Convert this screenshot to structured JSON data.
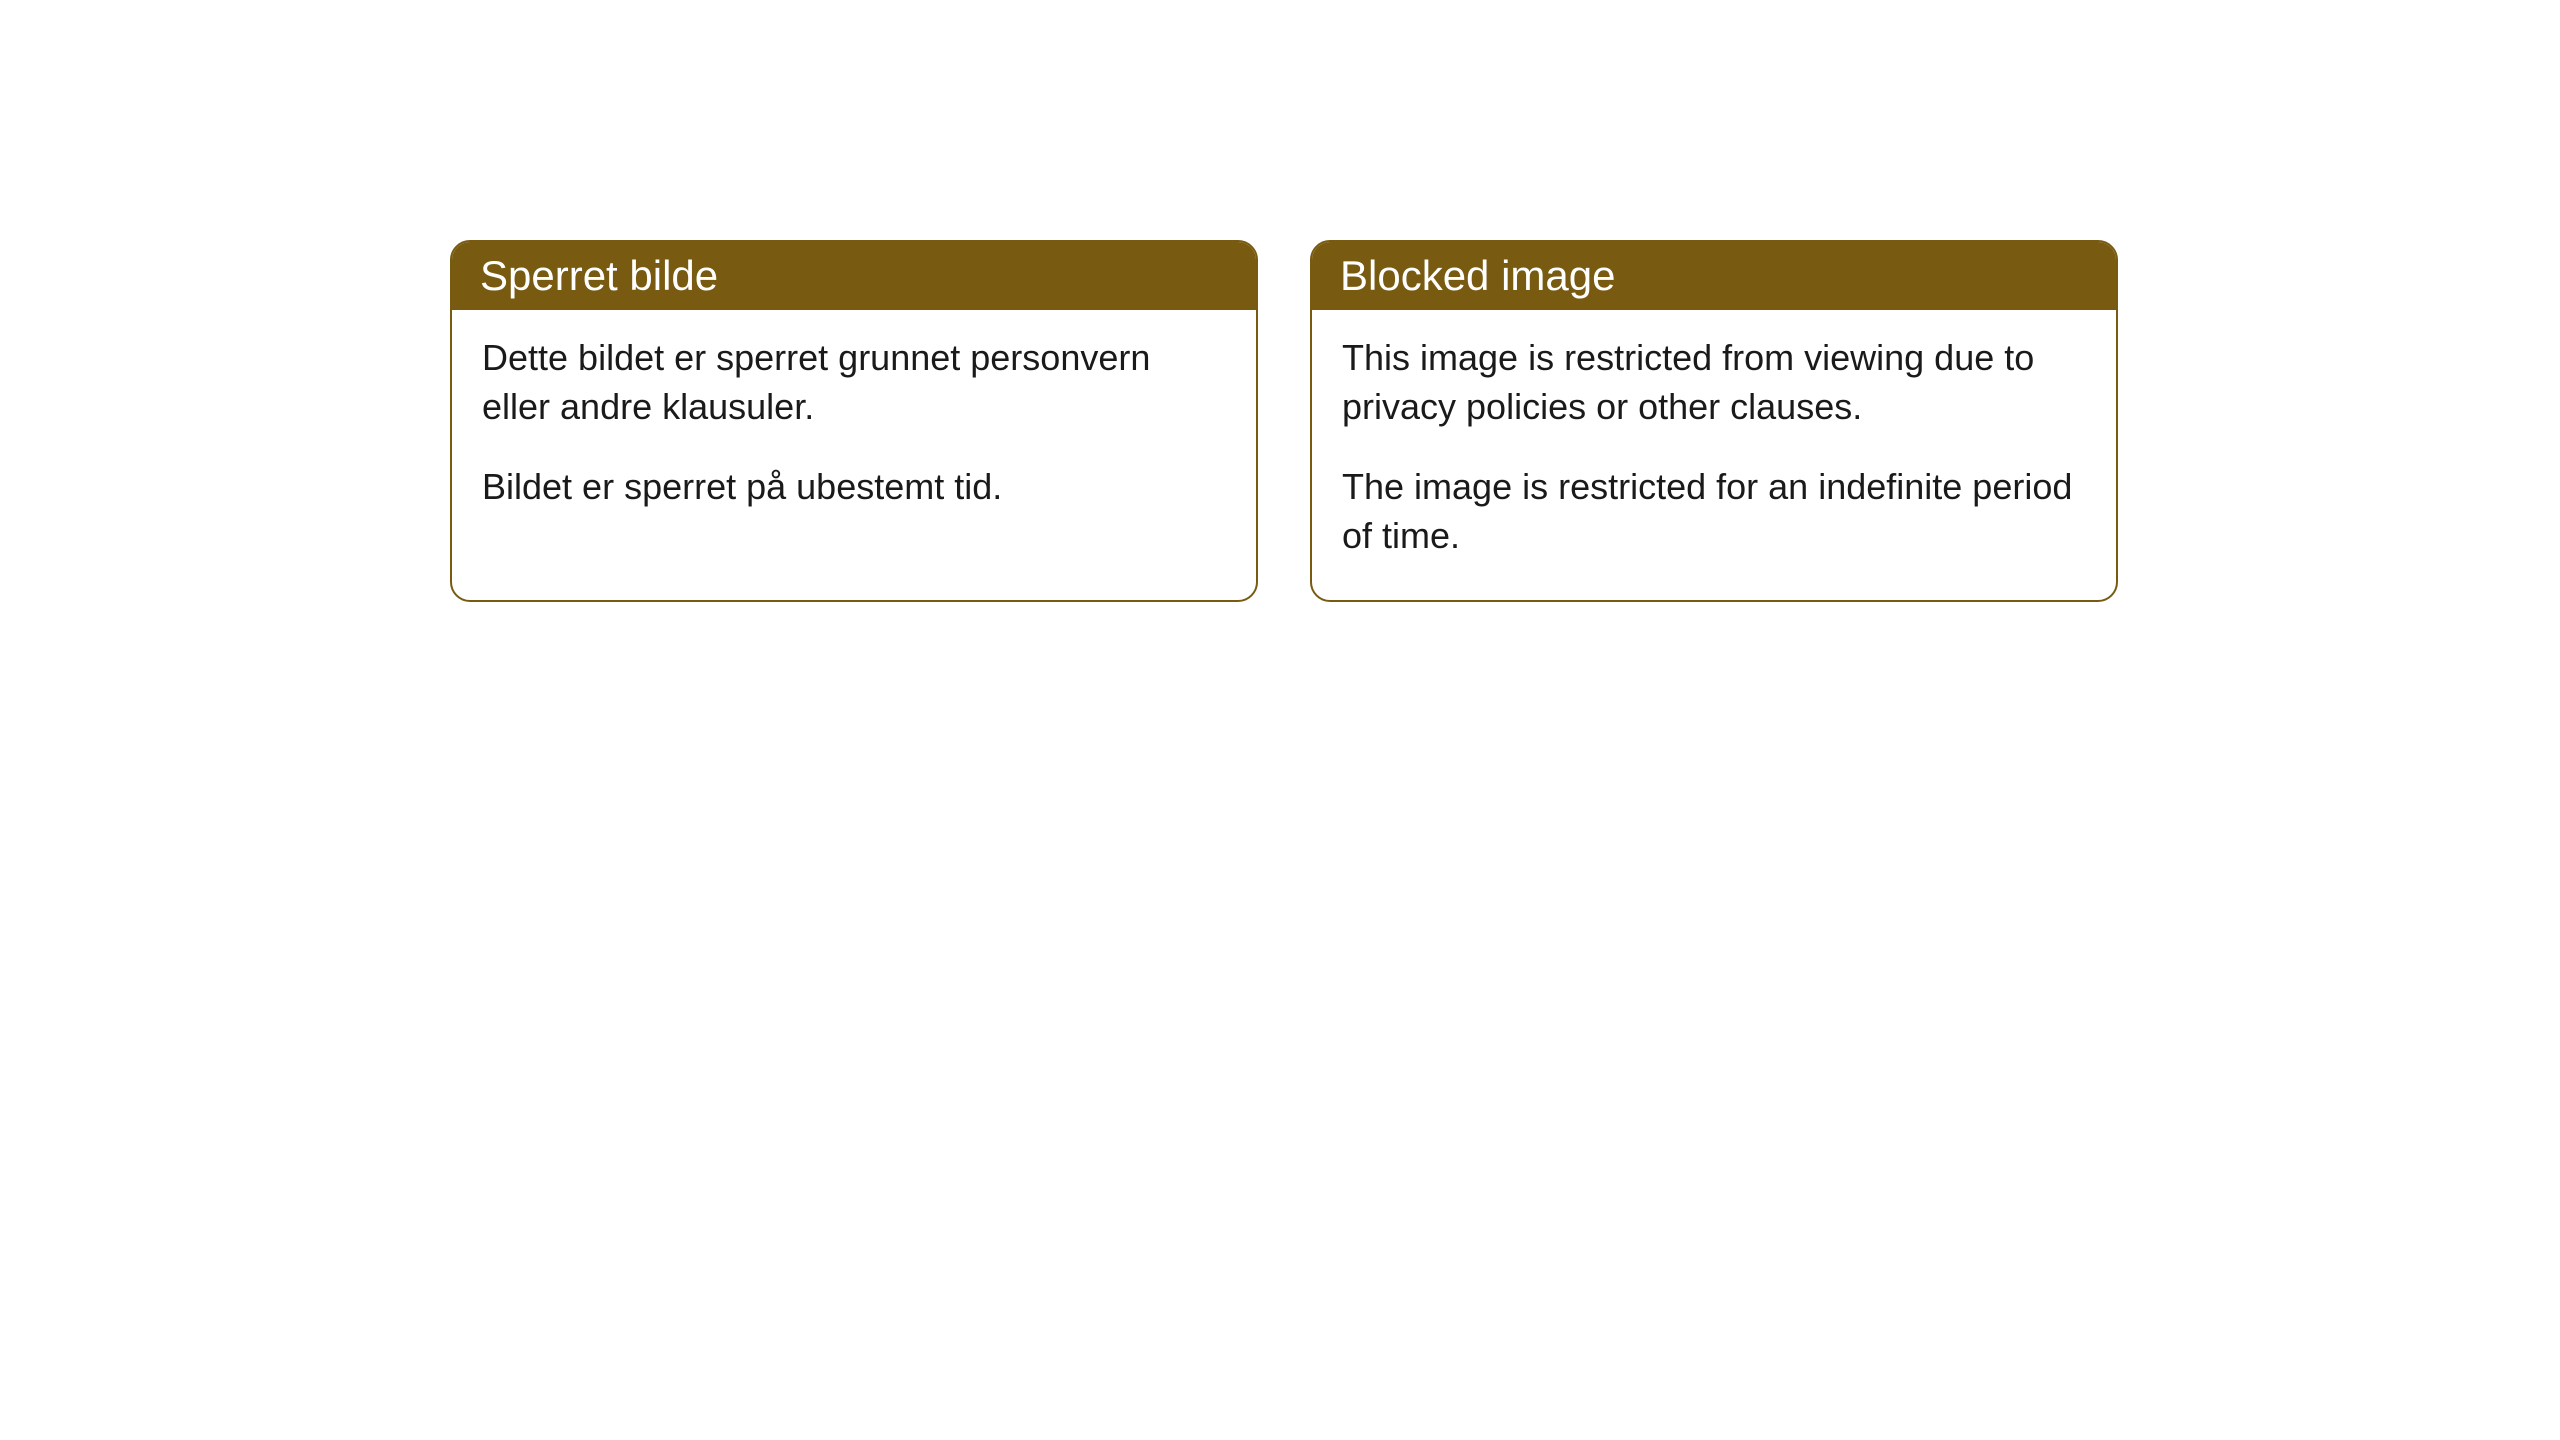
{
  "cards": [
    {
      "title": "Sperret bilde",
      "paragraph1": "Dette bildet er sperret grunnet personvern eller andre klausuler.",
      "paragraph2": "Bildet er sperret på ubestemt tid."
    },
    {
      "title": "Blocked image",
      "paragraph1": "This image is restricted from viewing due to privacy policies or other clauses.",
      "paragraph2": "The image is restricted for an indefinite period of time."
    }
  ],
  "styling": {
    "header_bg_color": "#785a10",
    "header_text_color": "#ffffff",
    "border_color": "#785a10",
    "body_bg_color": "#ffffff",
    "body_text_color": "#1a1a1a",
    "border_radius": 20,
    "header_fontsize": 42,
    "body_fontsize": 36
  }
}
